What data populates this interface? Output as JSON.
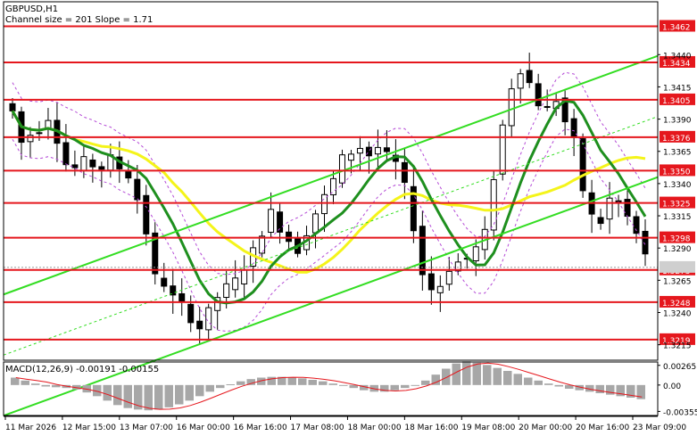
{
  "chart_data": [
    {
      "type": "candlestick",
      "symbol_label": "GBPUSD,H1",
      "subtitle": "Channel size = 201 Slope = 1.71",
      "y_ticks": [
        "1.3440",
        "1.3415",
        "1.3390",
        "1.3365",
        "1.3340",
        "1.3315",
        "1.3290",
        "1.3265",
        "1.3240",
        "1.3215"
      ],
      "y_tick_values": [
        1.344,
        1.3415,
        1.339,
        1.3365,
        1.334,
        1.3315,
        1.329,
        1.3265,
        1.324,
        1.3215
      ],
      "ylim": [
        1.3203,
        1.3481
      ],
      "x_ticks": [
        "11 Mar 2026",
        "12 Mar 15:00",
        "13 Mar 07:00",
        "16 Mar 00:00",
        "16 Mar 16:00",
        "17 Mar 08:00",
        "18 Mar 00:00",
        "18 Mar 16:00",
        "19 Mar 08:00",
        "20 Mar 00:00",
        "20 Mar 16:00",
        "23 Mar 09:00"
      ],
      "levels": [
        1.3462,
        1.3434,
        1.3405,
        1.3376,
        1.335,
        1.3325,
        1.3298,
        1.3273,
        1.3248,
        1.3219
      ],
      "current_price": 1.3275,
      "ohlc_midpoints": [
        1.3396,
        1.3372,
        1.3378,
        1.3382,
        1.3391,
        1.3374,
        1.3355,
        1.3352,
        1.3358,
        1.3354,
        1.3352,
        1.336,
        1.3352,
        1.3346,
        1.3328,
        1.3302,
        1.3268,
        1.3262,
        1.3252,
        1.3246,
        1.3235,
        1.3228,
        1.3241,
        1.3252,
        1.326,
        1.3265,
        1.3275,
        1.3288,
        1.3302,
        1.3318,
        1.3305,
        1.3296,
        1.3288,
        1.3302,
        1.3317,
        1.333,
        1.3343,
        1.336,
        1.3364,
        1.3368,
        1.3362,
        1.3368,
        1.3362,
        1.3356,
        1.3338,
        1.3306,
        1.327,
        1.3258,
        1.3261,
        1.3274,
        1.3279,
        1.3282,
        1.329,
        1.3302,
        1.3345,
        1.3385,
        1.3415,
        1.3428,
        1.3418,
        1.3402,
        1.3398,
        1.3405,
        1.3388,
        1.3373,
        1.3335,
        1.3315,
        1.331,
        1.3328,
        1.3325,
        1.3314,
        1.3301,
        1.3284
      ],
      "colors": {
        "level_line": "#e5171d",
        "channel": "#33dd22",
        "ma_green": "#1e8f1e",
        "ma_yellow": "#f4f41a",
        "envelope": "#b44ad6"
      },
      "grid": false
    },
    {
      "type": "bar",
      "label": "MACD(12,26,9) -0.00191 -0.00155",
      "y_ticks": [
        "0.00265",
        "0.00",
        "-0.00355"
      ],
      "y_tick_values": [
        0.00265,
        0.0,
        -0.00355
      ],
      "ylim": [
        -0.0041,
        0.0031
      ],
      "histogram": [
        0.001,
        0.0006,
        0.0002,
        -0.0002,
        -0.0003,
        -0.0004,
        -0.0006,
        -0.001,
        -0.0015,
        -0.0021,
        -0.0027,
        -0.0031,
        -0.0033,
        -0.0034,
        -0.0033,
        -0.003,
        -0.0026,
        -0.0021,
        -0.0015,
        -0.0009,
        -0.0004,
        0.0001,
        0.0005,
        0.0008,
        0.001,
        0.0011,
        0.0011,
        0.001,
        0.0009,
        0.0007,
        0.0005,
        0.0002,
        -0.0001,
        -0.0004,
        -0.0007,
        -0.0009,
        -0.0009,
        -0.0007,
        -0.0004,
        0.0,
        0.0006,
        0.0014,
        0.0022,
        0.0029,
        0.0032,
        0.003,
        0.0027,
        0.0023,
        0.0019,
        0.0015,
        0.001,
        0.0006,
        0.0002,
        -0.0002,
        -0.0005,
        -0.0007,
        -0.0009,
        -0.0011,
        -0.0013,
        -0.0015,
        -0.0017,
        -0.0019
      ]
    }
  ]
}
